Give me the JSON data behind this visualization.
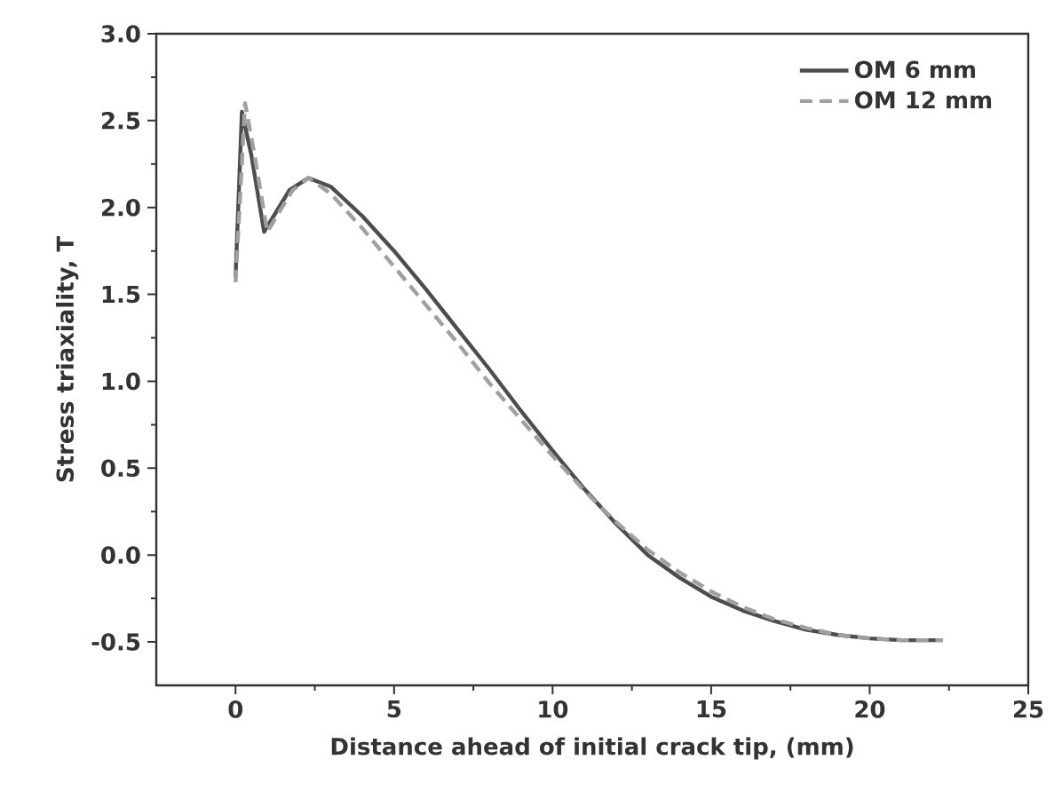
{
  "chart_data": {
    "type": "line",
    "xlabel": "Distance ahead of initial crack tip, (mm)",
    "ylabel": "Stress triaxiality, T",
    "xlim": [
      -2.5,
      25
    ],
    "ylim": [
      -0.75,
      3.0
    ],
    "xticks": [
      0,
      5,
      10,
      15,
      20,
      25
    ],
    "yticks": [
      {
        "value": -0.5,
        "label": "-0.5"
      },
      {
        "value": 0,
        "label": "0.0"
      },
      {
        "value": 0.5,
        "label": "0.5"
      },
      {
        "value": 1,
        "label": "1.0"
      },
      {
        "value": 1.5,
        "label": "1.5"
      },
      {
        "value": 2,
        "label": "2.0"
      },
      {
        "value": 2.5,
        "label": "2.5"
      },
      {
        "value": 3,
        "label": "3.0"
      }
    ],
    "grid": false,
    "legend": "top right",
    "series": [
      {
        "name": "OM  6  mm",
        "color": "#4d4d4d",
        "line_style": "solid",
        "x": [
          0,
          0.2,
          0.5,
          0.9,
          1.2,
          1.7,
          2.3,
          3,
          4,
          5,
          6,
          7,
          8,
          9,
          10,
          11,
          12,
          13,
          14,
          15,
          16,
          17,
          18,
          19,
          20,
          21,
          22.3
        ],
        "values": [
          1.6,
          2.55,
          2.3,
          1.86,
          1.95,
          2.1,
          2.17,
          2.12,
          1.95,
          1.75,
          1.53,
          1.3,
          1.07,
          0.83,
          0.6,
          0.38,
          0.18,
          0.0,
          -0.13,
          -0.24,
          -0.32,
          -0.38,
          -0.43,
          -0.46,
          -0.48,
          -0.49,
          -0.49
        ]
      },
      {
        "name": "OM 12 mm",
        "color": "#a0a0a0",
        "line_style": "dashed",
        "x": [
          0,
          0.3,
          0.6,
          1.0,
          1.3,
          1.8,
          2.3,
          3,
          4,
          5,
          6,
          7,
          8,
          9,
          10,
          11,
          12,
          13,
          14,
          15,
          16,
          17,
          18,
          19,
          20,
          21,
          22.3
        ],
        "values": [
          1.57,
          2.6,
          2.3,
          1.86,
          1.95,
          2.1,
          2.17,
          2.08,
          1.88,
          1.66,
          1.44,
          1.22,
          0.99,
          0.78,
          0.57,
          0.37,
          0.19,
          0.03,
          -0.1,
          -0.21,
          -0.3,
          -0.37,
          -0.42,
          -0.46,
          -0.48,
          -0.49,
          -0.49
        ]
      }
    ]
  }
}
